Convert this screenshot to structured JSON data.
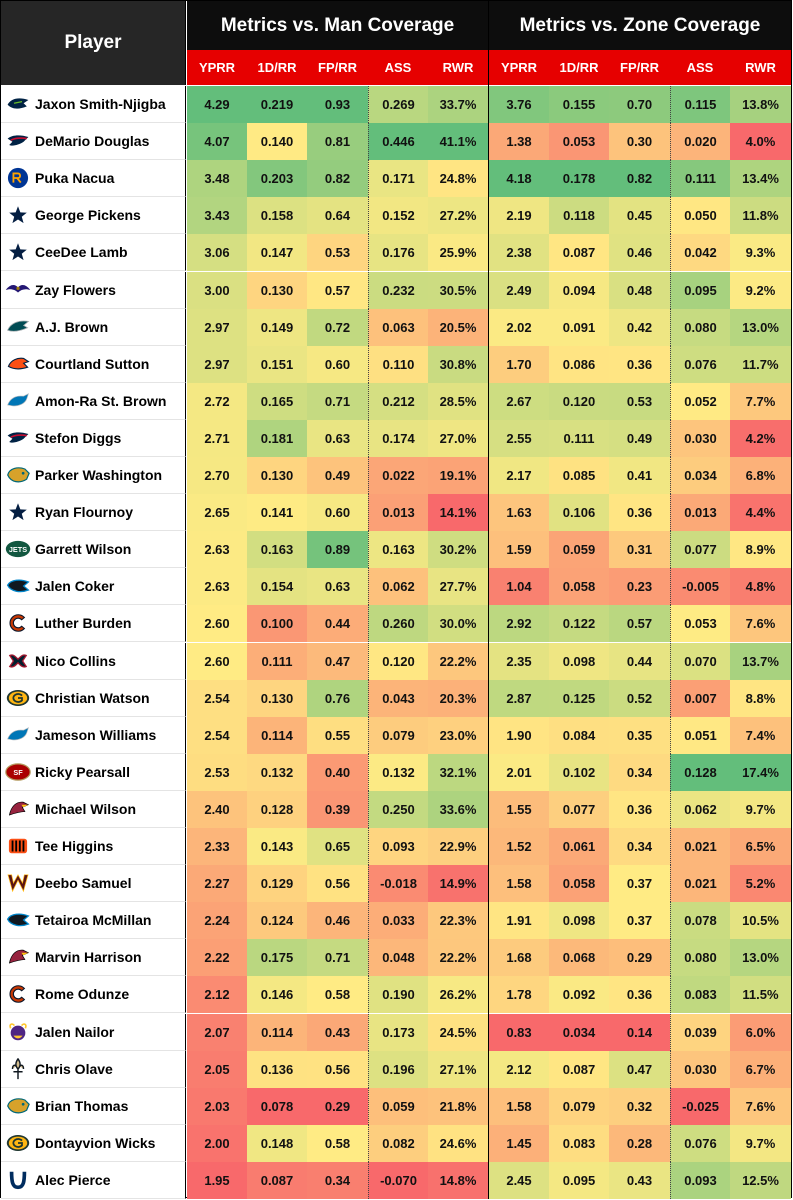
{
  "header": {
    "player": "Player",
    "man_title": "Metrics vs. Man Coverage",
    "zone_title": "Metrics vs. Zone Coverage",
    "columns": [
      "YPRR",
      "1D/RR",
      "FP/RR",
      "ASS",
      "RWR"
    ]
  },
  "teams": {
    "SEA": {
      "icon": "seahawks-logo-icon",
      "primary": "#002244",
      "secondary": "#69be28"
    },
    "NE": {
      "icon": "patriots-logo-icon",
      "primary": "#002244",
      "secondary": "#c60c30"
    },
    "LAR": {
      "icon": "rams-logo-icon",
      "primary": "#003594",
      "secondary": "#ffa300"
    },
    "DAL": {
      "icon": "cowboys-star-icon",
      "primary": "#041e42",
      "secondary": "#869397"
    },
    "BAL": {
      "icon": "ravens-logo-icon",
      "primary": "#241773",
      "secondary": "#9e7c0c"
    },
    "PHI": {
      "icon": "eagles-logo-icon",
      "primary": "#004c54",
      "secondary": "#a5acaf"
    },
    "DEN": {
      "icon": "broncos-logo-icon",
      "primary": "#fb4f14",
      "secondary": "#002244"
    },
    "DET": {
      "icon": "lions-logo-icon",
      "primary": "#0076b6",
      "secondary": "#b0b7bc"
    },
    "JAX": {
      "icon": "jaguars-logo-icon",
      "primary": "#006778",
      "secondary": "#d7a22a"
    },
    "NYJ": {
      "icon": "jets-logo-icon",
      "primary": "#125740",
      "secondary": "#ffffff"
    },
    "CAR": {
      "icon": "panthers-logo-icon",
      "primary": "#0085ca",
      "secondary": "#101820"
    },
    "CHI": {
      "icon": "bears-c-logo-icon",
      "primary": "#c83803",
      "secondary": "#0b162a"
    },
    "HOU": {
      "icon": "texans-logo-icon",
      "primary": "#03202f",
      "secondary": "#a71930"
    },
    "GB": {
      "icon": "packers-g-logo-icon",
      "primary": "#203731",
      "secondary": "#ffb612"
    },
    "SF": {
      "icon": "49ers-logo-icon",
      "primary": "#aa0000",
      "secondary": "#b3995d"
    },
    "ARI": {
      "icon": "cardinals-logo-icon",
      "primary": "#97233f",
      "secondary": "#000000"
    },
    "CIN": {
      "icon": "bengals-logo-icon",
      "primary": "#fb4f14",
      "secondary": "#000000"
    },
    "WAS": {
      "icon": "commanders-logo-icon",
      "primary": "#5a1414",
      "secondary": "#ffb612"
    },
    "MIN": {
      "icon": "vikings-logo-icon",
      "primary": "#4f2683",
      "secondary": "#ffc62f"
    },
    "NO": {
      "icon": "saints-logo-icon",
      "primary": "#101820",
      "secondary": "#d3bc8d"
    },
    "IND": {
      "icon": "colts-horseshoe-icon",
      "primary": "#002c5f",
      "secondary": "#ffffff"
    }
  },
  "rows": [
    {
      "name": "Jaxon Smith-Njigba",
      "team": "SEA",
      "man": [
        "4.29",
        "0.219",
        "0.93",
        "0.269",
        "33.7%"
      ],
      "zone": [
        "3.76",
        "0.155",
        "0.70",
        "0.115",
        "13.8%"
      ]
    },
    {
      "name": "DeMario Douglas",
      "team": "NE",
      "man": [
        "4.07",
        "0.140",
        "0.81",
        "0.446",
        "41.1%"
      ],
      "zone": [
        "1.38",
        "0.053",
        "0.30",
        "0.020",
        "4.0%"
      ]
    },
    {
      "name": "Puka Nacua",
      "team": "LAR",
      "man": [
        "3.48",
        "0.203",
        "0.82",
        "0.171",
        "24.8%"
      ],
      "zone": [
        "4.18",
        "0.178",
        "0.82",
        "0.111",
        "13.4%"
      ]
    },
    {
      "name": "George Pickens",
      "team": "DAL",
      "man": [
        "3.43",
        "0.158",
        "0.64",
        "0.152",
        "27.2%"
      ],
      "zone": [
        "2.19",
        "0.118",
        "0.45",
        "0.050",
        "11.8%"
      ]
    },
    {
      "name": "CeeDee Lamb",
      "team": "DAL",
      "man": [
        "3.06",
        "0.147",
        "0.53",
        "0.176",
        "25.9%"
      ],
      "zone": [
        "2.38",
        "0.087",
        "0.46",
        "0.042",
        "9.3%"
      ]
    },
    {
      "name": "Zay Flowers",
      "team": "BAL",
      "man": [
        "3.00",
        "0.130",
        "0.57",
        "0.232",
        "30.5%"
      ],
      "zone": [
        "2.49",
        "0.094",
        "0.48",
        "0.095",
        "9.2%"
      ]
    },
    {
      "name": "A.J. Brown",
      "team": "PHI",
      "man": [
        "2.97",
        "0.149",
        "0.72",
        "0.063",
        "20.5%"
      ],
      "zone": [
        "2.02",
        "0.091",
        "0.42",
        "0.080",
        "13.0%"
      ]
    },
    {
      "name": "Courtland Sutton",
      "team": "DEN",
      "man": [
        "2.97",
        "0.151",
        "0.60",
        "0.110",
        "30.8%"
      ],
      "zone": [
        "1.70",
        "0.086",
        "0.36",
        "0.076",
        "11.7%"
      ]
    },
    {
      "name": "Amon-Ra St. Brown",
      "team": "DET",
      "man": [
        "2.72",
        "0.165",
        "0.71",
        "0.212",
        "28.5%"
      ],
      "zone": [
        "2.67",
        "0.120",
        "0.53",
        "0.052",
        "7.7%"
      ]
    },
    {
      "name": "Stefon Diggs",
      "team": "NE",
      "man": [
        "2.71",
        "0.181",
        "0.63",
        "0.174",
        "27.0%"
      ],
      "zone": [
        "2.55",
        "0.111",
        "0.49",
        "0.030",
        "4.2%"
      ]
    },
    {
      "name": "Parker Washington",
      "team": "JAX",
      "man": [
        "2.70",
        "0.130",
        "0.49",
        "0.022",
        "19.1%"
      ],
      "zone": [
        "2.17",
        "0.085",
        "0.41",
        "0.034",
        "6.8%"
      ]
    },
    {
      "name": "Ryan Flournoy",
      "team": "DAL",
      "man": [
        "2.65",
        "0.141",
        "0.60",
        "0.013",
        "14.1%"
      ],
      "zone": [
        "1.63",
        "0.106",
        "0.36",
        "0.013",
        "4.4%"
      ]
    },
    {
      "name": "Garrett Wilson",
      "team": "NYJ",
      "man": [
        "2.63",
        "0.163",
        "0.89",
        "0.163",
        "30.2%"
      ],
      "zone": [
        "1.59",
        "0.059",
        "0.31",
        "0.077",
        "8.9%"
      ]
    },
    {
      "name": "Jalen Coker",
      "team": "CAR",
      "man": [
        "2.63",
        "0.154",
        "0.63",
        "0.062",
        "27.7%"
      ],
      "zone": [
        "1.04",
        "0.058",
        "0.23",
        "-0.005",
        "4.8%"
      ]
    },
    {
      "name": "Luther Burden",
      "team": "CHI",
      "man": [
        "2.60",
        "0.100",
        "0.44",
        "0.260",
        "30.0%"
      ],
      "zone": [
        "2.92",
        "0.122",
        "0.57",
        "0.053",
        "7.6%"
      ]
    },
    {
      "name": "Nico Collins",
      "team": "HOU",
      "man": [
        "2.60",
        "0.111",
        "0.47",
        "0.120",
        "22.2%"
      ],
      "zone": [
        "2.35",
        "0.098",
        "0.44",
        "0.070",
        "13.7%"
      ]
    },
    {
      "name": "Christian Watson",
      "team": "GB",
      "man": [
        "2.54",
        "0.130",
        "0.76",
        "0.043",
        "20.3%"
      ],
      "zone": [
        "2.87",
        "0.125",
        "0.52",
        "0.007",
        "8.8%"
      ]
    },
    {
      "name": "Jameson Williams",
      "team": "DET",
      "man": [
        "2.54",
        "0.114",
        "0.55",
        "0.079",
        "23.0%"
      ],
      "zone": [
        "1.90",
        "0.084",
        "0.35",
        "0.051",
        "7.4%"
      ]
    },
    {
      "name": "Ricky Pearsall",
      "team": "SF",
      "man": [
        "2.53",
        "0.132",
        "0.40",
        "0.132",
        "32.1%"
      ],
      "zone": [
        "2.01",
        "0.102",
        "0.34",
        "0.128",
        "17.4%"
      ]
    },
    {
      "name": "Michael Wilson",
      "team": "ARI",
      "man": [
        "2.40",
        "0.128",
        "0.39",
        "0.250",
        "33.6%"
      ],
      "zone": [
        "1.55",
        "0.077",
        "0.36",
        "0.062",
        "9.7%"
      ]
    },
    {
      "name": "Tee Higgins",
      "team": "CIN",
      "man": [
        "2.33",
        "0.143",
        "0.65",
        "0.093",
        "22.9%"
      ],
      "zone": [
        "1.52",
        "0.061",
        "0.34",
        "0.021",
        "6.5%"
      ]
    },
    {
      "name": "Deebo Samuel",
      "team": "WAS",
      "man": [
        "2.27",
        "0.129",
        "0.56",
        "-0.018",
        "14.9%"
      ],
      "zone": [
        "1.58",
        "0.058",
        "0.37",
        "0.021",
        "5.2%"
      ]
    },
    {
      "name": "Tetairoa McMillan",
      "team": "CAR",
      "man": [
        "2.24",
        "0.124",
        "0.46",
        "0.033",
        "22.3%"
      ],
      "zone": [
        "1.91",
        "0.098",
        "0.37",
        "0.078",
        "10.5%"
      ]
    },
    {
      "name": "Marvin Harrison",
      "team": "ARI",
      "man": [
        "2.22",
        "0.175",
        "0.71",
        "0.048",
        "22.2%"
      ],
      "zone": [
        "1.68",
        "0.068",
        "0.29",
        "0.080",
        "13.0%"
      ]
    },
    {
      "name": "Rome Odunze",
      "team": "CHI",
      "man": [
        "2.12",
        "0.146",
        "0.58",
        "0.190",
        "26.2%"
      ],
      "zone": [
        "1.78",
        "0.092",
        "0.36",
        "0.083",
        "11.5%"
      ]
    },
    {
      "name": "Jalen Nailor",
      "team": "MIN",
      "man": [
        "2.07",
        "0.114",
        "0.43",
        "0.173",
        "24.5%"
      ],
      "zone": [
        "0.83",
        "0.034",
        "0.14",
        "0.039",
        "6.0%"
      ]
    },
    {
      "name": "Chris Olave",
      "team": "NO",
      "man": [
        "2.05",
        "0.136",
        "0.56",
        "0.196",
        "27.1%"
      ],
      "zone": [
        "2.12",
        "0.087",
        "0.47",
        "0.030",
        "6.7%"
      ]
    },
    {
      "name": "Brian Thomas",
      "team": "JAX",
      "man": [
        "2.03",
        "0.078",
        "0.29",
        "0.059",
        "21.8%"
      ],
      "zone": [
        "1.58",
        "0.079",
        "0.32",
        "-0.025",
        "7.6%"
      ]
    },
    {
      "name": "Dontayvion Wicks",
      "team": "GB",
      "man": [
        "2.00",
        "0.148",
        "0.58",
        "0.082",
        "24.6%"
      ],
      "zone": [
        "1.45",
        "0.083",
        "0.28",
        "0.076",
        "9.7%"
      ]
    },
    {
      "name": "Alec Pierce",
      "team": "IND",
      "man": [
        "1.95",
        "0.087",
        "0.34",
        "-0.070",
        "14.8%"
      ],
      "zone": [
        "2.45",
        "0.095",
        "0.43",
        "0.093",
        "12.5%"
      ]
    }
  ]
}
